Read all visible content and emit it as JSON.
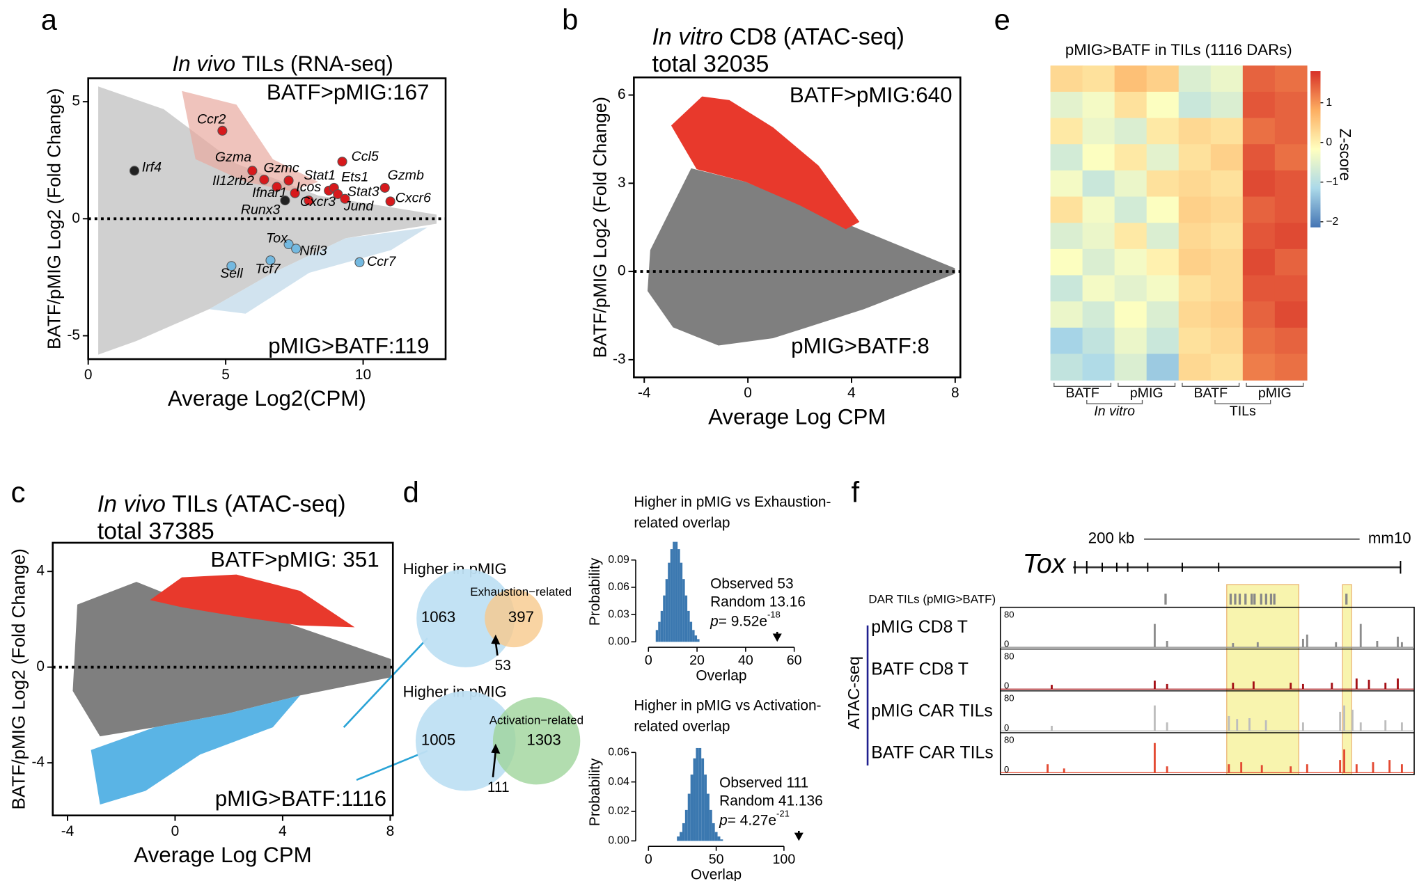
{
  "chart_data": [
    {
      "type": "scatter",
      "panel": "a",
      "title_italic": "In vivo",
      "title": "TILs (RNA-seq)",
      "xlabel": "Average Log2(CPM)",
      "ylabel": "BATF/pMIG Log2 (Fold Change)",
      "xlim": [
        0,
        13
      ],
      "xticks": [
        0,
        5,
        10
      ],
      "ylim": [
        -6,
        6
      ],
      "yticks": [
        -5,
        0,
        5
      ],
      "annotations": [
        "BATF>pMIG:167",
        "pMIG>BATF:119"
      ],
      "points": [
        {
          "label": "Ccr2",
          "x": 4.88,
          "y": 3.76,
          "color": "#d7191c"
        },
        {
          "label": "Irf4",
          "x": 1.68,
          "y": 2.05,
          "color": "#222222"
        },
        {
          "label": "Gzma",
          "x": 5.97,
          "y": 2.05,
          "color": "#d7191c"
        },
        {
          "label": "Il12rb2",
          "x": 6.4,
          "y": 1.67,
          "color": "#d7191c"
        },
        {
          "label": "Gzmc",
          "x": 7.29,
          "y": 1.63,
          "color": "#d7191c"
        },
        {
          "label": "Ifnar1",
          "x": 6.86,
          "y": 1.36,
          "color": "#d7191c"
        },
        {
          "label": "Runx3",
          "x": 7.16,
          "y": 0.78,
          "color": "#222222"
        },
        {
          "label": "Icos",
          "x": 7.52,
          "y": 1.09,
          "color": "#d7191c"
        },
        {
          "label": "Stat1",
          "x": 8.75,
          "y": 1.2,
          "color": "#d7191c"
        },
        {
          "label": "Cxcr3",
          "x": 8.02,
          "y": 0.78,
          "color": "#d7191c"
        },
        {
          "label": "Ccl5",
          "x": 9.24,
          "y": 2.44,
          "color": "#d7191c"
        },
        {
          "label": "Ets1",
          "x": 8.94,
          "y": 1.32,
          "color": "#d7191c"
        },
        {
          "label": "Stat3",
          "x": 9.08,
          "y": 1.05,
          "color": "#d7191c"
        },
        {
          "label": "Jund",
          "x": 9.34,
          "y": 0.85,
          "color": "#d7191c"
        },
        {
          "label": "Gzmb",
          "x": 10.79,
          "y": 1.32,
          "color": "#d7191c"
        },
        {
          "label": "Cxcr6",
          "x": 10.99,
          "y": 0.74,
          "color": "#d7191c"
        },
        {
          "label": "Tox",
          "x": 7.29,
          "y": -1.09,
          "color": "#74b9e0"
        },
        {
          "label": "Nfil3",
          "x": 7.56,
          "y": -1.28,
          "color": "#74b9e0"
        },
        {
          "label": "Tcf7",
          "x": 6.63,
          "y": -1.78,
          "color": "#74b9e0"
        },
        {
          "label": "Sell",
          "x": 5.21,
          "y": -2.02,
          "color": "#74b9e0"
        },
        {
          "label": "Ccr7",
          "x": 9.87,
          "y": -1.86,
          "color": "#74b9e0"
        }
      ]
    },
    {
      "type": "scatter",
      "panel": "b",
      "title_italic": "In vitro",
      "title": "CD8 (ATAC-seq)",
      "subtitle": "total 32035",
      "xlabel": "Average Log CPM",
      "ylabel": "BATF/pMIG Log2 (Fold Change)",
      "xlim": [
        -4.4,
        8.2
      ],
      "xticks": [
        -4,
        0,
        4,
        8
      ],
      "ylim": [
        -3.6,
        6.6
      ],
      "yticks": [
        -3,
        0,
        3,
        6
      ],
      "annotations": [
        "BATF>pMIG:640",
        "pMIG>BATF:8"
      ],
      "points": []
    },
    {
      "type": "scatter",
      "panel": "c",
      "title_italic": "In vivo",
      "title": "TILs (ATAC-seq)",
      "subtitle": "total 37385",
      "xlabel": "Average Log CPM",
      "ylabel": "BATF/pMIG Log2 (Fold Change)",
      "xlim": [
        -4.55,
        8.1
      ],
      "xticks": [
        -4,
        0,
        4,
        8
      ],
      "ylim": [
        -6.2,
        5.2
      ],
      "yticks": [
        -4,
        0,
        4
      ],
      "annotations": [
        "BATF>pMIG: 351",
        "pMIG>BATF:1116"
      ],
      "points": []
    },
    {
      "type": "venn",
      "panel": "d",
      "header": "Higher in pMIG",
      "left": {
        "count": 1063
      },
      "right": {
        "label": "Exhaustion−related",
        "count": 397
      },
      "overlap": 53
    },
    {
      "type": "venn",
      "header": "Higher in pMIG",
      "left": {
        "count": 1005
      },
      "right": {
        "label": "Activation−related",
        "count": 1303
      },
      "overlap": 111
    },
    {
      "type": "histogram",
      "title": [
        "Higher in pMIG vs Exhaustion-",
        "related overlap"
      ],
      "xlabel": "Overlap",
      "ylabel": "Probability",
      "bins": [
        3,
        4,
        5,
        6,
        7,
        8,
        9,
        10,
        11,
        12,
        13,
        14,
        15,
        16,
        17,
        18,
        19,
        20,
        21
      ],
      "values": [
        0.013,
        0.022,
        0.034,
        0.051,
        0.069,
        0.087,
        0.102,
        0.11,
        0.11,
        0.102,
        0.087,
        0.069,
        0.051,
        0.034,
        0.022,
        0.013,
        0.007,
        0.003
      ],
      "color": "#3b78b0",
      "xlim": [
        -3,
        62.5
      ],
      "xticks": [
        0,
        20,
        40,
        60
      ],
      "ylim": [
        0,
        0.11
      ],
      "yticks": [
        {
          "value": 0,
          "label": "0.00"
        },
        0.03,
        0.06,
        0.09
      ],
      "observed": 53,
      "observed_label": "Observed 53",
      "random_label": "Random 13.16",
      "p_label": {
        "symbol": "p",
        "value": "= 9.52e",
        "exponent": "-18"
      }
    },
    {
      "type": "histogram",
      "title": [
        "Higher in pMIG vs Activation-",
        "related overlap"
      ],
      "xlabel": "Overlap",
      "ylabel": "Probability",
      "bins": [
        21,
        23,
        25,
        27,
        29,
        31,
        33,
        35,
        37,
        39,
        41,
        43,
        45,
        47,
        49,
        51,
        53,
        55
      ],
      "values": [
        0.003,
        0.006,
        0.012,
        0.021,
        0.032,
        0.045,
        0.056,
        0.063,
        0.063,
        0.056,
        0.045,
        0.032,
        0.021,
        0.012,
        0.006,
        0.003,
        0.001
      ],
      "color": "#3b78b0",
      "xlim": [
        -5.4,
        125.5
      ],
      "xticks": [
        0,
        50,
        100
      ],
      "ylim": [
        0,
        0.066
      ],
      "yticks": [
        {
          "value": 0,
          "label": "0.00"
        },
        0.02,
        0.04,
        0.06
      ],
      "observed": 111,
      "observed_label": "Observed 111",
      "random_label": "Random 41.136",
      "p_label": {
        "symbol": "p",
        "value": "= 4.27e",
        "exponent": "-21"
      }
    },
    {
      "type": "heatmap",
      "panel": "e",
      "title": "pMIG>BATF in TILs (1116 DARs)",
      "colorbar_label": "Z-score",
      "colorscale": [
        "#4575b4",
        "#abd9e9",
        "#ffffbf",
        "#fdae61",
        "#d73027"
      ],
      "zlim": [
        -2.14,
        1.8
      ],
      "zticks": [
        1,
        0,
        {
          "value": -1,
          "label": "−1"
        },
        {
          "value": -2,
          "label": "−2"
        }
      ],
      "columns": [
        "BATF",
        "pMIG",
        "BATF",
        "pMIG"
      ],
      "groups": [
        {
          "label": "In vitro",
          "italic": true
        },
        {
          "label": "TILs",
          "italic": false
        }
      ],
      "matrix": [
        [
          0.3,
          0.2,
          0.6,
          0.4,
          -0.6,
          -0.4,
          1.4,
          1.3
        ],
        [
          -0.5,
          -0.3,
          0.2,
          -0.2,
          -0.8,
          -0.6,
          1.5,
          1.4
        ],
        [
          0.1,
          -0.4,
          -0.6,
          0.1,
          0.3,
          0.2,
          1.3,
          1.4
        ],
        [
          -0.7,
          -0.2,
          0.1,
          -0.5,
          0.2,
          0.4,
          1.5,
          1.3
        ],
        [
          -0.3,
          -0.8,
          -0.4,
          0.2,
          0.3,
          0.2,
          1.6,
          1.5
        ],
        [
          0.2,
          -0.3,
          -0.7,
          -0.2,
          0.4,
          0.3,
          1.4,
          1.5
        ],
        [
          -0.6,
          -0.4,
          0.1,
          -0.6,
          0.3,
          0.2,
          1.5,
          1.6
        ],
        [
          -0.2,
          -0.6,
          -0.3,
          0.0,
          0.4,
          0.3,
          1.6,
          1.4
        ],
        [
          -0.8,
          -0.3,
          -0.5,
          -0.3,
          0.2,
          0.3,
          1.5,
          1.5
        ],
        [
          -0.4,
          -0.7,
          -0.2,
          -0.6,
          0.3,
          0.4,
          1.4,
          1.6
        ],
        [
          -1.2,
          -0.9,
          -0.4,
          -0.8,
          0.2,
          0.3,
          1.3,
          1.4
        ],
        [
          -0.9,
          -1.1,
          -0.6,
          -1.3,
          0.3,
          0.2,
          1.2,
          1.3
        ]
      ]
    },
    {
      "type": "tracks",
      "panel": "f",
      "scale_label": "200 kb",
      "genome": "mm10",
      "gene": "Tox",
      "dar_label": "DAR TILs (pMIG>BATF)",
      "assay": "ATAC-seq",
      "xlim": [
        0,
        100
      ],
      "ylim": [
        0,
        90
      ],
      "yticks": [
        0,
        80
      ],
      "highlights": [
        [
          54.5,
          72
        ],
        [
          82.6,
          84.8
        ]
      ],
      "dars": [
        39.6,
        55.4,
        56.5,
        57.6,
        59,
        60.5,
        61.2,
        62.8,
        64,
        65.2,
        66,
        83.5
      ],
      "tracks": [
        {
          "name": "pMIG CD8 T",
          "color": "#8c8c8c",
          "peaks": [
            [
              37,
              55
            ],
            [
              40,
              15
            ],
            [
              56,
              10
            ],
            [
              62,
              12
            ],
            [
              73,
              20
            ],
            [
              74,
              30
            ],
            [
              81,
              12
            ],
            [
              87,
              55
            ],
            [
              91,
              15
            ],
            [
              96,
              25
            ],
            [
              97,
              12
            ]
          ]
        },
        {
          "name": "BATF CD8 T",
          "color": "#a50f15",
          "peaks": [
            [
              12,
              10
            ],
            [
              37,
              20
            ],
            [
              40,
              12
            ],
            [
              56,
              15
            ],
            [
              61,
              18
            ],
            [
              70,
              15
            ],
            [
              73,
              12
            ],
            [
              80,
              15
            ],
            [
              86,
              25
            ],
            [
              89,
              22
            ],
            [
              93,
              15
            ],
            [
              96,
              25
            ]
          ]
        },
        {
          "name": "pMIG CAR TILs",
          "color": "#bdbdbd",
          "peaks": [
            [
              12,
              12
            ],
            [
              37,
              60
            ],
            [
              40,
              20
            ],
            [
              55,
              35
            ],
            [
              57,
              28
            ],
            [
              60,
              30
            ],
            [
              64,
              25
            ],
            [
              73,
              20
            ],
            [
              82,
              45
            ],
            [
              83,
              60
            ],
            [
              85,
              50
            ],
            [
              87,
              20
            ],
            [
              93,
              25
            ],
            [
              97,
              20
            ]
          ]
        },
        {
          "name": "BATF CAR TILs",
          "color": "#e34a33",
          "peaks": [
            [
              11,
              20
            ],
            [
              15,
              10
            ],
            [
              37,
              70
            ],
            [
              40,
              15
            ],
            [
              55,
              20
            ],
            [
              58,
              25
            ],
            [
              63,
              18
            ],
            [
              70,
              15
            ],
            [
              74,
              20
            ],
            [
              82,
              30
            ],
            [
              83,
              55
            ],
            [
              86,
              20
            ],
            [
              90,
              25
            ],
            [
              94,
              30
            ],
            [
              97,
              20
            ]
          ]
        }
      ]
    }
  ]
}
